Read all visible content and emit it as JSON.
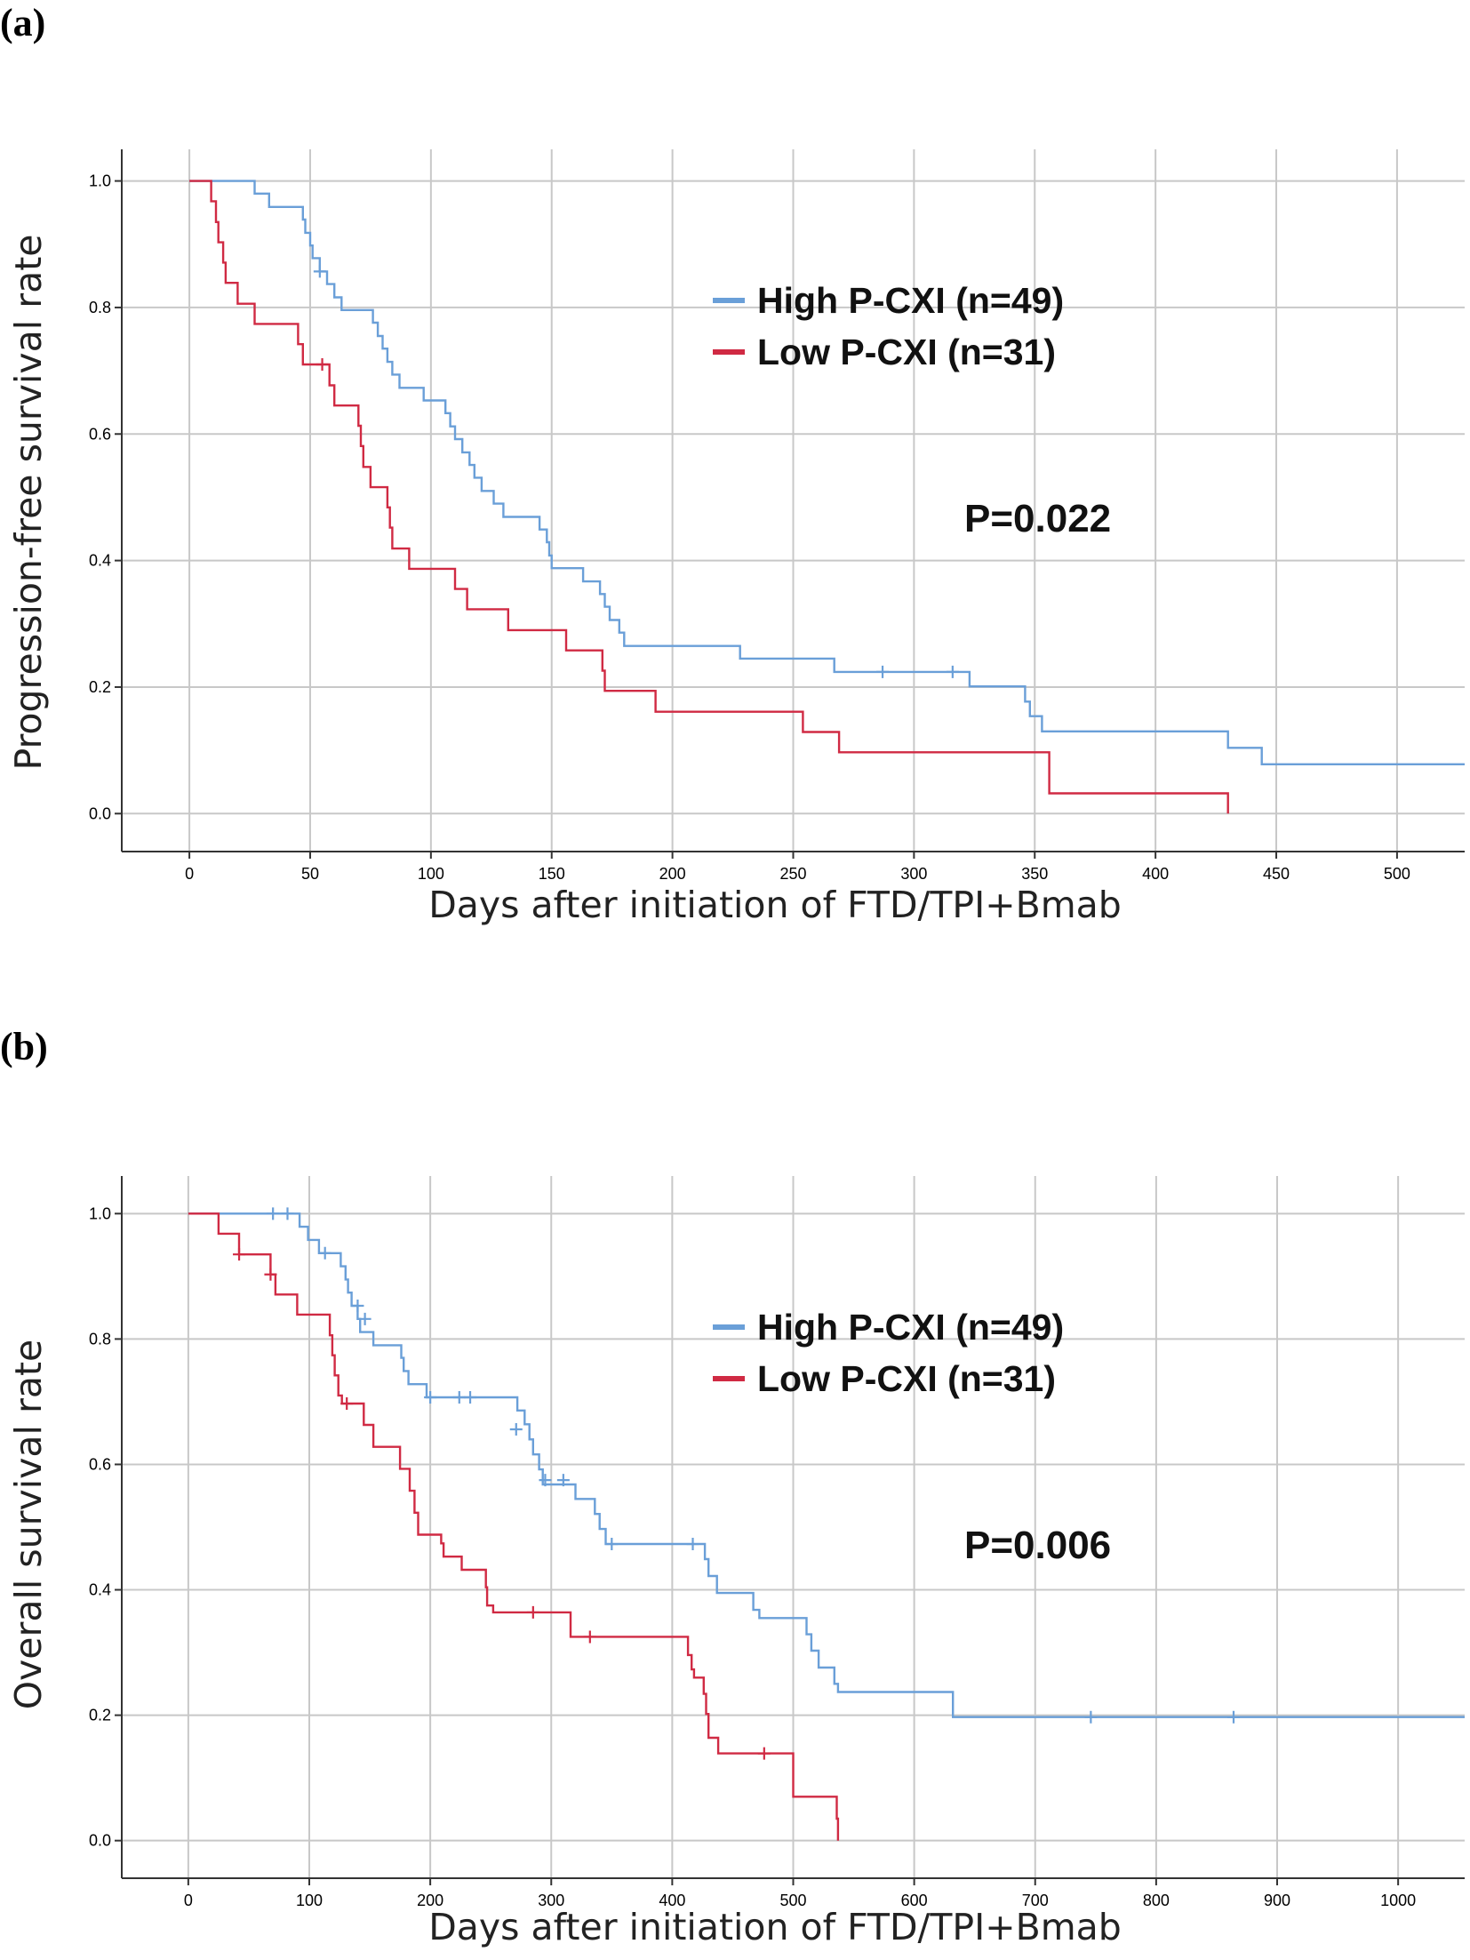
{
  "chart_data": [
    {
      "panel": "(a)",
      "type": "line",
      "subtype": "kaplan-meier",
      "xlabel": "Days after initiation of FTD/TPI+Bmab",
      "ylabel": "Progression-free survival rate",
      "xlim": [
        -28,
        528
      ],
      "ylim": [
        -0.06,
        1.05
      ],
      "xticks": [
        0,
        50,
        100,
        150,
        200,
        250,
        300,
        350,
        400,
        450,
        500
      ],
      "yticks": [
        0.0,
        0.2,
        0.4,
        0.6,
        0.8,
        1.0
      ],
      "ytick_labels": [
        "0.0",
        "0.2",
        "0.4",
        "0.6",
        "0.8",
        "1.0"
      ],
      "annotation": "P=0.022",
      "series": [
        {
          "name": "High P-CXI (n=49)",
          "color": "#6a9fd8",
          "steps": [
            [
              0,
              1.0
            ],
            [
              27,
              0.98
            ],
            [
              33,
              0.959
            ],
            [
              47,
              0.939
            ],
            [
              48,
              0.918
            ],
            [
              50,
              0.898
            ],
            [
              51,
              0.878
            ],
            [
              54,
              0.857
            ],
            [
              57,
              0.837
            ],
            [
              60,
              0.816
            ],
            [
              63,
              0.796
            ],
            [
              76,
              0.776
            ],
            [
              78,
              0.755
            ],
            [
              80,
              0.735
            ],
            [
              82,
              0.714
            ],
            [
              84,
              0.694
            ],
            [
              87,
              0.673
            ],
            [
              97,
              0.653
            ],
            [
              106,
              0.633
            ],
            [
              108,
              0.612
            ],
            [
              110,
              0.592
            ],
            [
              113,
              0.571
            ],
            [
              116,
              0.551
            ],
            [
              118,
              0.531
            ],
            [
              121,
              0.51
            ],
            [
              126,
              0.49
            ],
            [
              130,
              0.469
            ],
            [
              145,
              0.449
            ],
            [
              148,
              0.429
            ],
            [
              149,
              0.408
            ],
            [
              150,
              0.388
            ],
            [
              163,
              0.367
            ],
            [
              170,
              0.347
            ],
            [
              172,
              0.327
            ],
            [
              174,
              0.306
            ],
            [
              178,
              0.286
            ],
            [
              180,
              0.265
            ],
            [
              228,
              0.245
            ],
            [
              267,
              0.224
            ],
            [
              323,
              0.201
            ],
            [
              346,
              0.177
            ],
            [
              348,
              0.154
            ],
            [
              353,
              0.13
            ],
            [
              430,
              0.104
            ],
            [
              444,
              0.078
            ],
            [
              528,
              0.078
            ]
          ],
          "censored": [
            [
              54,
              0.857
            ],
            [
              287,
              0.224
            ],
            [
              316,
              0.224
            ]
          ]
        },
        {
          "name": "Low P-CXI (n=31)",
          "color": "#d02a43",
          "steps": [
            [
              0,
              1.0
            ],
            [
              9,
              0.968
            ],
            [
              11,
              0.935
            ],
            [
              12,
              0.903
            ],
            [
              14,
              0.871
            ],
            [
              15,
              0.839
            ],
            [
              20,
              0.806
            ],
            [
              27,
              0.774
            ],
            [
              45,
              0.742
            ],
            [
              47,
              0.71
            ],
            [
              58,
              0.677
            ],
            [
              60,
              0.645
            ],
            [
              70,
              0.613
            ],
            [
              71,
              0.581
            ],
            [
              72,
              0.548
            ],
            [
              75,
              0.516
            ],
            [
              82,
              0.484
            ],
            [
              83,
              0.452
            ],
            [
              84,
              0.419
            ],
            [
              91,
              0.387
            ],
            [
              110,
              0.355
            ],
            [
              115,
              0.323
            ],
            [
              132,
              0.29
            ],
            [
              156,
              0.258
            ],
            [
              171,
              0.226
            ],
            [
              172,
              0.194
            ],
            [
              193,
              0.161
            ],
            [
              254,
              0.129
            ],
            [
              269,
              0.097
            ],
            [
              356,
              0.065
            ],
            [
              356,
              0.032
            ],
            [
              430,
              0.032
            ],
            [
              430,
              0.0
            ]
          ],
          "censored": [
            [
              55,
              0.71
            ]
          ]
        }
      ]
    },
    {
      "panel": "(b)",
      "type": "line",
      "subtype": "kaplan-meier",
      "xlabel": "Days after initiation of FTD/TPI+Bmab",
      "ylabel": "Overall survival rate",
      "xlim": [
        -55,
        1055
      ],
      "ylim": [
        -0.06,
        1.06
      ],
      "xticks": [
        0,
        100,
        200,
        300,
        400,
        500,
        600,
        700,
        800,
        900,
        1000
      ],
      "yticks": [
        0.0,
        0.2,
        0.4,
        0.6,
        0.8,
        1.0
      ],
      "ytick_labels": [
        "0.0",
        "0.2",
        "0.4",
        "0.6",
        "0.8",
        "1.0"
      ],
      "annotation": "P=0.006",
      "series": [
        {
          "name": "High P-CXI (n=49)",
          "color": "#6a9fd8",
          "steps": [
            [
              0,
              1.0
            ],
            [
              92,
              0.979
            ],
            [
              99,
              0.958
            ],
            [
              108,
              0.937
            ],
            [
              126,
              0.916
            ],
            [
              130,
              0.895
            ],
            [
              132,
              0.874
            ],
            [
              135,
              0.853
            ],
            [
              140,
              0.832
            ],
            [
              142,
              0.811
            ],
            [
              152,
              0.811
            ],
            [
              153,
              0.79
            ],
            [
              176,
              0.77
            ],
            [
              178,
              0.749
            ],
            [
              182,
              0.728
            ],
            [
              197,
              0.707
            ],
            [
              272,
              0.686
            ],
            [
              278,
              0.664
            ],
            [
              282,
              0.64
            ],
            [
              285,
              0.616
            ],
            [
              290,
              0.592
            ],
            [
              293,
              0.568
            ],
            [
              320,
              0.545
            ],
            [
              336,
              0.521
            ],
            [
              340,
              0.497
            ],
            [
              345,
              0.473
            ],
            [
              427,
              0.449
            ],
            [
              430,
              0.422
            ],
            [
              437,
              0.395
            ],
            [
              467,
              0.368
            ],
            [
              472,
              0.355
            ],
            [
              511,
              0.329
            ],
            [
              515,
              0.303
            ],
            [
              521,
              0.276
            ],
            [
              534,
              0.25
            ],
            [
              537,
              0.237
            ],
            [
              632,
              0.197
            ],
            [
              1055,
              0.197
            ]
          ],
          "censored": [
            [
              70,
              1.0
            ],
            [
              82,
              1.0
            ],
            [
              113,
              0.937
            ],
            [
              140,
              0.853
            ],
            [
              146,
              0.832
            ],
            [
              200,
              0.707
            ],
            [
              224,
              0.707
            ],
            [
              233,
              0.707
            ],
            [
              271,
              0.656
            ],
            [
              295,
              0.575
            ],
            [
              310,
              0.575
            ],
            [
              350,
              0.473
            ],
            [
              417,
              0.473
            ],
            [
              746,
              0.197
            ],
            [
              864,
              0.197
            ]
          ]
        },
        {
          "name": "Low P-CXI (n=31)",
          "color": "#d02a43",
          "steps": [
            [
              0,
              1.0
            ],
            [
              25,
              0.968
            ],
            [
              42,
              0.935
            ],
            [
              68,
              0.903
            ],
            [
              72,
              0.871
            ],
            [
              90,
              0.839
            ],
            [
              117,
              0.806
            ],
            [
              119,
              0.774
            ],
            [
              121,
              0.742
            ],
            [
              124,
              0.71
            ],
            [
              127,
              0.697
            ],
            [
              145,
              0.663
            ],
            [
              153,
              0.628
            ],
            [
              175,
              0.593
            ],
            [
              183,
              0.558
            ],
            [
              187,
              0.523
            ],
            [
              190,
              0.488
            ],
            [
              209,
              0.474
            ],
            [
              211,
              0.453
            ],
            [
              226,
              0.432
            ],
            [
              246,
              0.404
            ],
            [
              247,
              0.375
            ],
            [
              252,
              0.364
            ],
            [
              316,
              0.325
            ],
            [
              413,
              0.296
            ],
            [
              416,
              0.273
            ],
            [
              418,
              0.26
            ],
            [
              426,
              0.234
            ],
            [
              428,
              0.202
            ],
            [
              430,
              0.164
            ],
            [
              438,
              0.139
            ],
            [
              500,
              0.07
            ],
            [
              536,
              0.035
            ],
            [
              537,
              0.0
            ]
          ],
          "censored": [
            [
              42,
              0.935
            ],
            [
              68,
              0.903
            ],
            [
              131,
              0.697
            ],
            [
              285,
              0.364
            ],
            [
              332,
              0.325
            ],
            [
              476,
              0.139
            ]
          ]
        }
      ]
    }
  ],
  "color_high": "#6a9fd8",
  "color_low": "#d02a43"
}
